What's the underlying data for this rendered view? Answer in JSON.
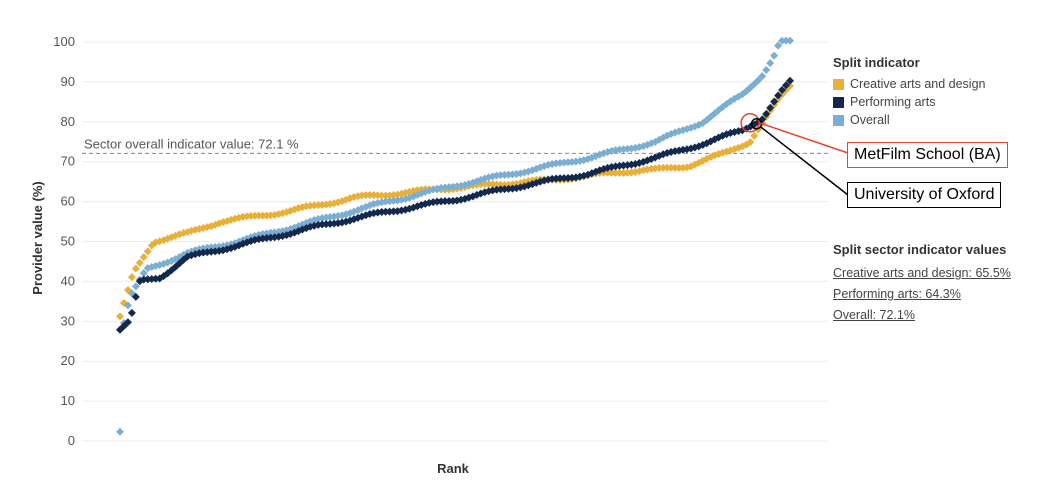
{
  "chart_data": {
    "type": "scatter",
    "title": "",
    "xlabel": "Rank",
    "ylabel": "Provider value (%)",
    "ylim": [
      0,
      100
    ],
    "yticks": [
      0,
      10,
      20,
      30,
      40,
      50,
      60,
      70,
      80,
      90,
      100
    ],
    "grid": true,
    "reference_line": {
      "value": 72.1,
      "label": "Sector overall indicator value: 72.1 %"
    },
    "legend": {
      "title": "Split indicator",
      "position": "right",
      "entries": [
        {
          "name": "Creative arts and design",
          "color": "#e8b03a"
        },
        {
          "name": "Performing arts",
          "color": "#12284c"
        },
        {
          "name": "Overall",
          "color": "#7aaed3"
        }
      ]
    },
    "series": [
      {
        "name": "Creative arts and design",
        "color": "#e8b03a",
        "curve": [
          [
            0,
            31
          ],
          [
            0.02,
            42
          ],
          [
            0.035,
            46
          ],
          [
            0.05,
            50
          ],
          [
            0.1,
            52
          ],
          [
            0.15,
            55
          ],
          [
            0.25,
            57.5
          ],
          [
            0.35,
            61
          ],
          [
            0.5,
            63.5
          ],
          [
            0.65,
            65.5
          ],
          [
            0.75,
            67.5
          ],
          [
            0.8,
            68
          ],
          [
            0.85,
            69
          ],
          [
            0.9,
            72
          ],
          [
            0.94,
            75
          ],
          [
            0.96,
            80
          ],
          [
            0.985,
            86
          ],
          [
            1.0,
            89
          ]
        ]
      },
      {
        "name": "Performing arts",
        "color": "#12284c",
        "curve": [
          [
            0,
            28
          ],
          [
            0.015,
            30
          ],
          [
            0.03,
            40
          ],
          [
            0.06,
            41
          ],
          [
            0.1,
            46
          ],
          [
            0.2,
            50
          ],
          [
            0.3,
            54
          ],
          [
            0.4,
            57.5
          ],
          [
            0.5,
            60.5
          ],
          [
            0.6,
            64
          ],
          [
            0.7,
            67
          ],
          [
            0.8,
            71
          ],
          [
            0.88,
            75
          ],
          [
            0.93,
            78
          ],
          [
            0.96,
            81
          ],
          [
            0.985,
            87
          ],
          [
            1.0,
            90
          ]
        ]
      },
      {
        "name": "Overall",
        "color": "#7aaed3",
        "curve": [
          [
            0,
            2.5
          ],
          [
            0.006,
            30
          ],
          [
            0.015,
            36
          ],
          [
            0.04,
            43
          ],
          [
            0.1,
            47
          ],
          [
            0.2,
            51
          ],
          [
            0.3,
            55.5
          ],
          [
            0.4,
            60
          ],
          [
            0.5,
            64
          ],
          [
            0.6,
            67.5
          ],
          [
            0.7,
            71
          ],
          [
            0.8,
            75
          ],
          [
            0.87,
            80
          ],
          [
            0.93,
            87
          ],
          [
            0.96,
            92
          ],
          [
            0.975,
            96
          ],
          [
            0.985,
            100
          ],
          [
            1.0,
            100
          ]
        ]
      }
    ],
    "split_sector_values": {
      "title": "Split sector indicator values",
      "items": [
        "Creative arts and design: 65.5%",
        "Performing arts: 64.3%",
        "Overall: 72.1%"
      ]
    },
    "annotations": [
      {
        "label": "MetFilm School (BA)",
        "series": "Creative arts and design",
        "rank_fraction": 0.945,
        "value": 80,
        "color": "#e8432f"
      },
      {
        "label": "University of Oxford",
        "series": "Performing arts",
        "rank_fraction": 0.95,
        "value": 80,
        "color": "#000000"
      }
    ]
  }
}
